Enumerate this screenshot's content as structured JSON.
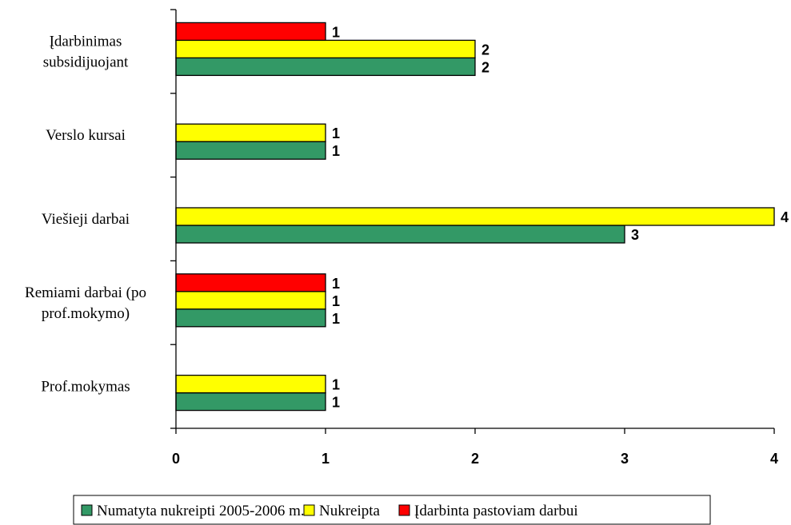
{
  "chart_data": {
    "type": "bar",
    "orientation": "horizontal",
    "categories": [
      [
        "Įdarbinimas",
        "subsidijuojant"
      ],
      [
        "Verslo kursai"
      ],
      [
        "Viešieji darbai"
      ],
      [
        "Remiami darbai (po",
        "prof.mokymo)"
      ],
      [
        "Prof.mokymas"
      ]
    ],
    "series": [
      {
        "name": "Numatyta nukreipti 2005-2006 m.",
        "color": "#339966",
        "values": [
          2,
          1,
          3,
          1,
          1
        ]
      },
      {
        "name": "Nukreipta",
        "color": "#ffff00",
        "values": [
          2,
          1,
          4,
          1,
          1
        ]
      },
      {
        "name": "Įdarbinta pastoviam darbui",
        "color": "#ff0000",
        "values": [
          1,
          null,
          null,
          1,
          null
        ]
      }
    ],
    "xlim": [
      0,
      4
    ],
    "xticks": [
      "0",
      "1",
      "2",
      "3",
      "4"
    ],
    "grid": false,
    "legend_position": "bottom"
  }
}
